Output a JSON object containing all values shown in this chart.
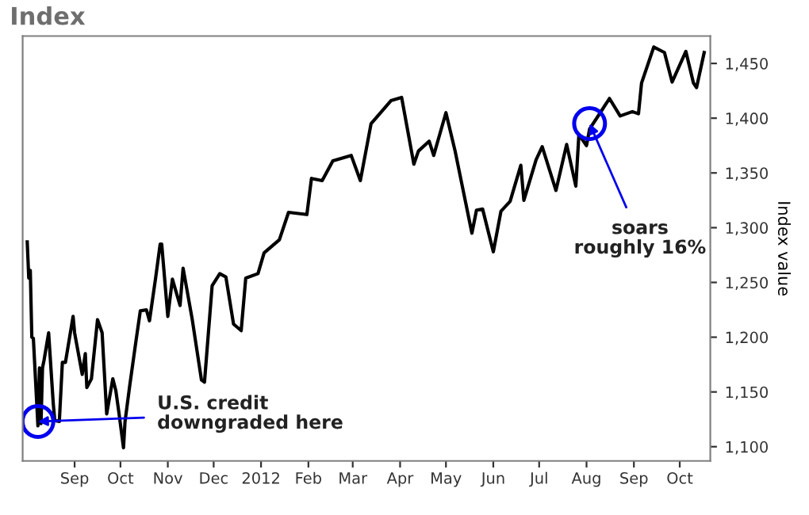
{
  "chart_data": {
    "type": "line",
    "title": "Index",
    "ylabel": "Index value",
    "x": [
      "2011-08-01",
      "2011-08-02",
      "2011-08-03",
      "2011-08-04",
      "2011-08-05",
      "2011-08-08",
      "2011-08-09",
      "2011-08-10",
      "2011-08-11",
      "2011-08-12",
      "2011-08-15",
      "2011-08-18",
      "2011-08-19",
      "2011-08-22",
      "2011-08-24",
      "2011-08-26",
      "2011-08-31",
      "2011-09-01",
      "2011-09-06",
      "2011-09-08",
      "2011-09-09",
      "2011-09-12",
      "2011-09-16",
      "2011-09-19",
      "2011-09-22",
      "2011-09-26",
      "2011-09-28",
      "2011-09-30",
      "2011-10-03",
      "2011-10-04",
      "2011-10-07",
      "2011-10-11",
      "2011-10-14",
      "2011-10-18",
      "2011-10-20",
      "2011-10-24",
      "2011-10-27",
      "2011-10-28",
      "2011-11-01",
      "2011-11-04",
      "2011-11-09",
      "2011-11-11",
      "2011-11-17",
      "2011-11-23",
      "2011-11-25",
      "2011-11-30",
      "2011-12-05",
      "2011-12-09",
      "2011-12-14",
      "2011-12-19",
      "2011-12-22",
      "2011-12-30",
      "2012-01-03",
      "2012-01-13",
      "2012-01-19",
      "2012-01-31",
      "2012-02-03",
      "2012-02-10",
      "2012-02-17",
      "2012-02-29",
      "2012-03-06",
      "2012-03-13",
      "2012-03-26",
      "2012-04-02",
      "2012-04-10",
      "2012-04-13",
      "2012-04-20",
      "2012-04-23",
      "2012-05-01",
      "2012-05-07",
      "2012-05-18",
      "2012-05-21",
      "2012-05-25",
      "2012-06-01",
      "2012-06-06",
      "2012-06-12",
      "2012-06-19",
      "2012-06-21",
      "2012-06-29",
      "2012-07-03",
      "2012-07-12",
      "2012-07-19",
      "2012-07-25",
      "2012-07-27",
      "2012-08-01",
      "2012-08-03",
      "2012-08-10",
      "2012-08-16",
      "2012-08-23",
      "2012-08-31",
      "2012-09-04",
      "2012-09-06",
      "2012-09-14",
      "2012-09-21",
      "2012-09-26",
      "2012-10-05",
      "2012-10-10",
      "2012-10-12",
      "2012-10-17"
    ],
    "series": [
      {
        "color": "#000000",
        "values": [
          1287,
          1254,
          1261,
          1200,
          1199,
          1119,
          1172,
          1121,
          1172,
          1179,
          1204,
          1140,
          1124,
          1123,
          1177,
          1177,
          1219,
          1204,
          1166,
          1185,
          1154,
          1162,
          1216,
          1204,
          1130,
          1162,
          1151,
          1131,
          1099,
          1123,
          1155,
          1195,
          1224,
          1225,
          1215,
          1254,
          1285,
          1285,
          1219,
          1253,
          1229,
          1263,
          1216,
          1161,
          1159,
          1247,
          1258,
          1255,
          1212,
          1206,
          1254,
          1258,
          1277,
          1289,
          1314,
          1312,
          1345,
          1343,
          1361,
          1366,
          1343,
          1395,
          1416,
          1419,
          1358,
          1370,
          1379,
          1366,
          1405,
          1370,
          1295,
          1316,
          1317,
          1278,
          1315,
          1324,
          1357,
          1325,
          1362,
          1374,
          1334,
          1376,
          1338,
          1385,
          1375,
          1390,
          1405,
          1418,
          1402,
          1406,
          1404,
          1432,
          1465,
          1460,
          1433,
          1461,
          1432,
          1428,
          1460
        ]
      }
    ],
    "xlim": [
      "2011-07-29",
      "2012-10-21"
    ],
    "xticks": [
      {
        "value": "2011-09-01",
        "label": "Sep"
      },
      {
        "value": "2011-10-01",
        "label": "Oct"
      },
      {
        "value": "2011-11-01",
        "label": "Nov"
      },
      {
        "value": "2011-12-01",
        "label": "Dec"
      },
      {
        "value": "2012-01-01",
        "label": "2012"
      },
      {
        "value": "2012-02-01",
        "label": "Feb"
      },
      {
        "value": "2012-03-01",
        "label": "Mar"
      },
      {
        "value": "2012-04-01",
        "label": "Apr"
      },
      {
        "value": "2012-05-01",
        "label": "May"
      },
      {
        "value": "2012-06-01",
        "label": "Jun"
      },
      {
        "value": "2012-07-01",
        "label": "Jul"
      },
      {
        "value": "2012-08-01",
        "label": "Aug"
      },
      {
        "value": "2012-09-01",
        "label": "Sep"
      },
      {
        "value": "2012-10-01",
        "label": "Oct"
      }
    ],
    "ylim": [
      1087,
      1475
    ],
    "yticks": [
      {
        "value": 1100,
        "label": "1,100"
      },
      {
        "value": 1150,
        "label": "1,150"
      },
      {
        "value": 1200,
        "label": "1,200"
      },
      {
        "value": 1250,
        "label": "1,250"
      },
      {
        "value": 1300,
        "label": "1,300"
      },
      {
        "value": 1350,
        "label": "1,350"
      },
      {
        "value": 1400,
        "label": "1,400"
      },
      {
        "value": 1450,
        "label": "1,450"
      }
    ],
    "grid": false,
    "legend": false,
    "marker": "none",
    "line_style": "solid",
    "annotations": [
      {
        "text": "U.S. credit\ndowngraded here",
        "x": "2011-08-08",
        "y": 1123
      },
      {
        "text": "soars\nroughly 16%",
        "x": "2012-08-03",
        "y": 1395
      }
    ]
  }
}
